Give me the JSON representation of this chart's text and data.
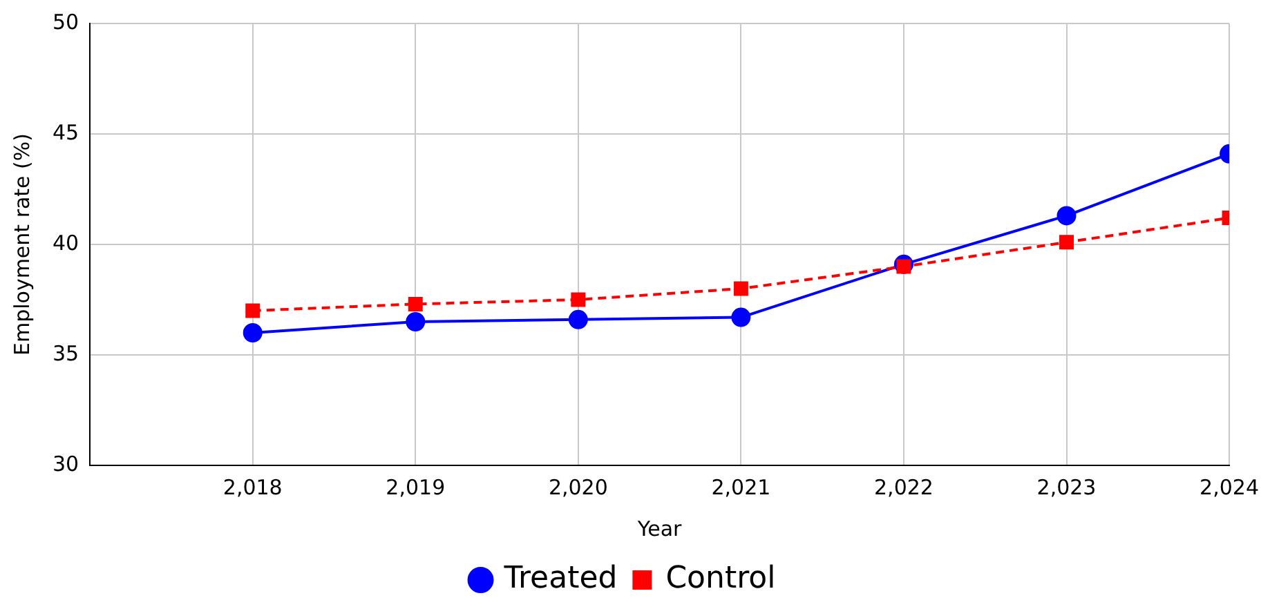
{
  "chart_data": {
    "type": "line",
    "xlabel": "Year",
    "ylabel": "Employment rate (%)",
    "x": [
      2018,
      2019,
      2020,
      2021,
      2022,
      2023,
      2024
    ],
    "xlim": [
      2017,
      2024
    ],
    "xticks": [
      {
        "value": 2018,
        "label": "2,018"
      },
      {
        "value": 2019,
        "label": "2,019"
      },
      {
        "value": 2020,
        "label": "2,020"
      },
      {
        "value": 2021,
        "label": "2,021"
      },
      {
        "value": 2022,
        "label": "2,022"
      },
      {
        "value": 2023,
        "label": "2,023"
      },
      {
        "value": 2024,
        "label": "2,024"
      }
    ],
    "ylim": [
      30,
      50
    ],
    "yticks": [
      30,
      35,
      40,
      45,
      50
    ],
    "grid": true,
    "legend": "bottom",
    "series": [
      {
        "name": "Treated",
        "color": "#0000ff",
        "marker": "circle",
        "line_style": "solid",
        "values": [
          36.0,
          36.5,
          36.6,
          36.7,
          39.1,
          41.3,
          44.1
        ]
      },
      {
        "name": "Control",
        "color": "#ff0000",
        "marker": "square",
        "line_style": "dashed",
        "values": [
          37.0,
          37.3,
          37.5,
          38.0,
          39.0,
          40.1,
          41.2
        ]
      }
    ]
  }
}
